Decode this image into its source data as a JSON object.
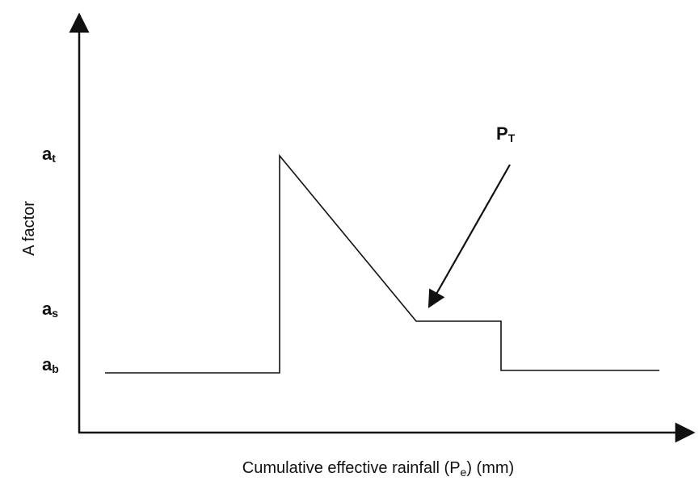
{
  "y_axis": {
    "label": "A factor",
    "levels": [
      {
        "main": "a",
        "sub": "t"
      },
      {
        "main": "a",
        "sub": "s"
      },
      {
        "main": "a",
        "sub": "b"
      }
    ]
  },
  "x_axis": {
    "label": [
      "Cumulative effective rainfall (P",
      "e",
      ") (mm)"
    ]
  },
  "annotation": {
    "main": "P",
    "sub": "T"
  }
}
